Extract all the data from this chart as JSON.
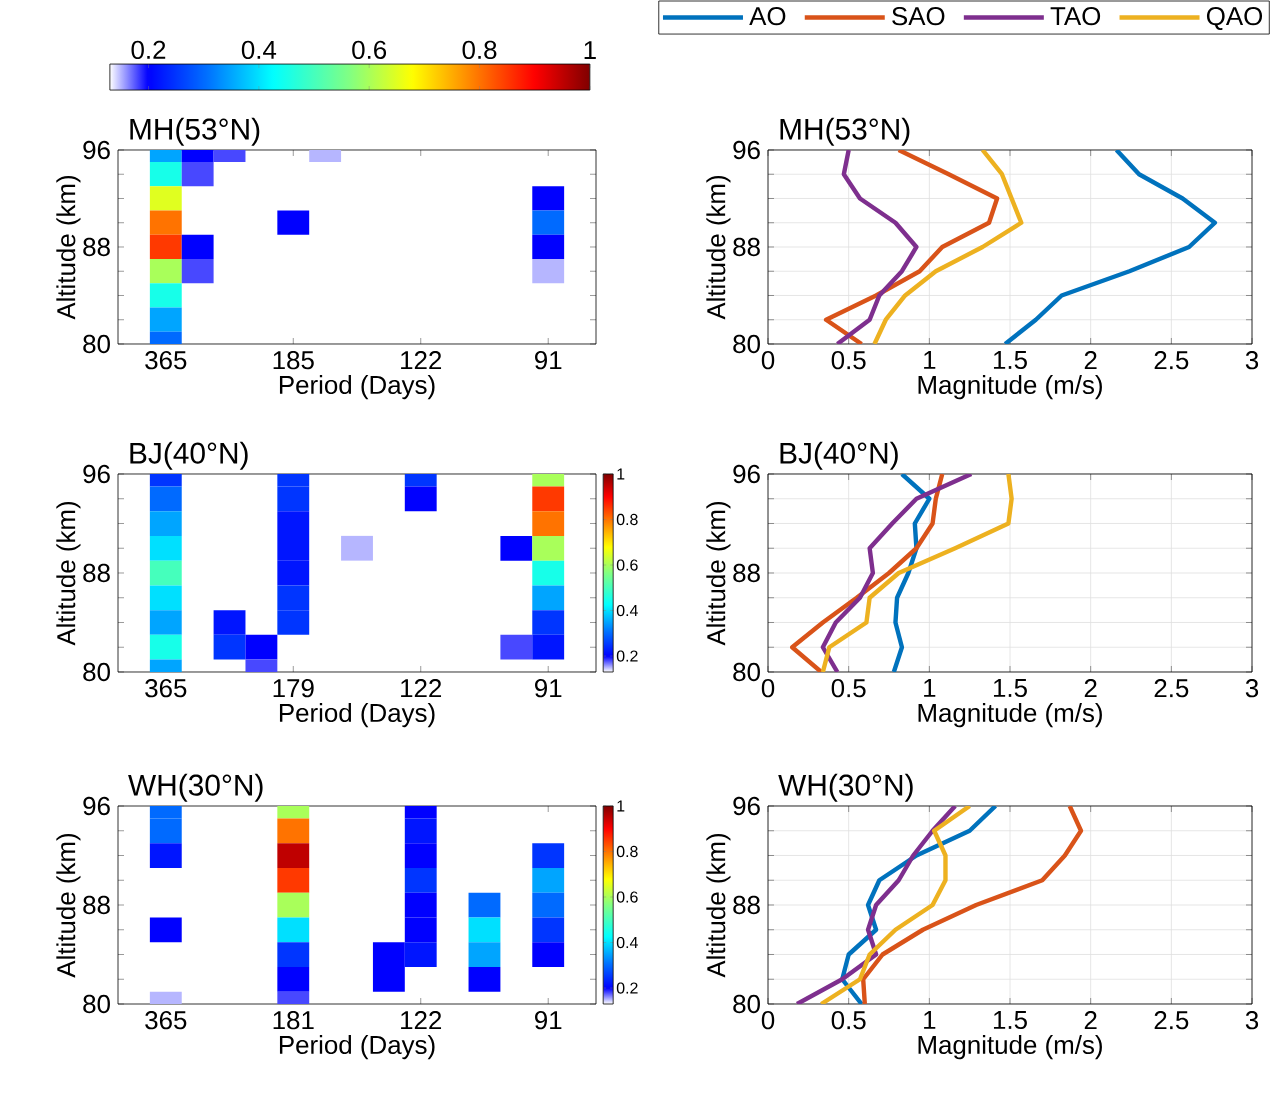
{
  "chart_data": [
    {
      "type": "heatmap",
      "title": "MH(53°N)",
      "xlabel": "Period (Days)",
      "ylabel": "Altitude (km)",
      "categories": [
        null,
        "365",
        null,
        null,
        null,
        "185",
        null,
        null,
        null,
        "122",
        null,
        null,
        null,
        "91",
        null
      ],
      "y_categories": [
        "96",
        null,
        null,
        null,
        "88",
        null,
        null,
        null,
        "80"
      ],
      "cells": [
        [
          null,
          0.35,
          0.2,
          0.18,
          null,
          null,
          0.15,
          null,
          null,
          null,
          null,
          null,
          null,
          null,
          null
        ],
        [
          null,
          0.45,
          0.18,
          null,
          null,
          null,
          null,
          null,
          null,
          null,
          null,
          null,
          null,
          null,
          null
        ],
        [
          null,
          0.65,
          null,
          null,
          null,
          null,
          null,
          null,
          null,
          null,
          null,
          null,
          null,
          0.2,
          null
        ],
        [
          null,
          0.8,
          null,
          null,
          null,
          0.2,
          null,
          null,
          null,
          null,
          null,
          null,
          null,
          0.3,
          null
        ],
        [
          null,
          0.85,
          0.2,
          null,
          null,
          null,
          null,
          null,
          null,
          null,
          null,
          null,
          null,
          0.2,
          null
        ],
        [
          null,
          0.6,
          0.18,
          null,
          null,
          null,
          null,
          null,
          null,
          null,
          null,
          null,
          null,
          0.15,
          null
        ],
        [
          null,
          0.45,
          null,
          null,
          null,
          null,
          null,
          null,
          null,
          null,
          null,
          null,
          null,
          null,
          null
        ],
        [
          null,
          0.35,
          null,
          null,
          null,
          null,
          null,
          null,
          null,
          null,
          null,
          null,
          null,
          null,
          null
        ],
        [
          null,
          0.3,
          null,
          null,
          null,
          null,
          null,
          null,
          null,
          null,
          null,
          null,
          null,
          null,
          null
        ]
      ],
      "clim": [
        0.13,
        1
      ],
      "cticks": [
        0.2,
        0.4,
        0.6,
        0.8,
        1
      ]
    },
    {
      "type": "line",
      "title": "MH(53°N)",
      "xlabel": "Magnitude (m/s)",
      "ylabel": "Altitude (km)",
      "orientation": "horizontal",
      "x": [
        80,
        82,
        84,
        86,
        88,
        90,
        92,
        94,
        96
      ],
      "series": [
        {
          "name": "AO",
          "color": "#0072bd",
          "values": [
            1.47,
            1.66,
            1.82,
            2.24,
            2.61,
            2.77,
            2.57,
            2.3,
            2.16
          ]
        },
        {
          "name": "SAO",
          "color": "#d95319",
          "values": [
            0.58,
            0.36,
            0.67,
            0.94,
            1.08,
            1.37,
            1.42,
            1.12,
            0.81
          ]
        },
        {
          "name": "TAO",
          "color": "#7e2f8e",
          "values": [
            0.43,
            0.63,
            0.69,
            0.83,
            0.92,
            0.79,
            0.57,
            0.47,
            0.5
          ]
        },
        {
          "name": "QAO",
          "color": "#edb120",
          "values": [
            0.66,
            0.73,
            0.85,
            1.04,
            1.33,
            1.57,
            1.51,
            1.45,
            1.33
          ]
        }
      ],
      "xlim": [
        0,
        3
      ],
      "xticks": [
        0,
        0.5,
        1,
        1.5,
        2,
        2.5,
        3
      ],
      "ylim": [
        80,
        96
      ],
      "yticks": [
        80,
        {
          "value": 82,
          "label": null
        },
        {
          "value": 84,
          "label": null
        },
        {
          "value": 86,
          "label": null
        },
        88,
        {
          "value": 90,
          "label": null
        },
        {
          "value": 92,
          "label": null
        },
        {
          "value": 94,
          "label": null
        },
        96
      ],
      "grid": true,
      "legend": "top"
    },
    {
      "type": "heatmap",
      "title": "BJ(40°N)",
      "xlabel": "Period (Days)",
      "ylabel": "Altitude (km)",
      "categories": [
        null,
        "365",
        null,
        null,
        null,
        "179",
        null,
        null,
        null,
        "122",
        null,
        null,
        null,
        "91",
        null
      ],
      "y_categories": [
        "96",
        null,
        null,
        null,
        "88",
        null,
        null,
        null,
        "80"
      ],
      "cells": [
        [
          null,
          0.25,
          null,
          null,
          null,
          0.25,
          null,
          null,
          null,
          0.25,
          null,
          null,
          null,
          0.6,
          null
        ],
        [
          null,
          0.3,
          null,
          null,
          null,
          0.25,
          null,
          null,
          null,
          0.2,
          null,
          null,
          null,
          0.85,
          null
        ],
        [
          null,
          0.35,
          null,
          null,
          null,
          0.22,
          null,
          null,
          null,
          null,
          null,
          null,
          null,
          0.8,
          null
        ],
        [
          null,
          0.4,
          null,
          null,
          null,
          0.22,
          null,
          0.15,
          null,
          null,
          null,
          null,
          0.2,
          0.6,
          null
        ],
        [
          null,
          0.5,
          null,
          null,
          null,
          0.22,
          null,
          null,
          null,
          null,
          null,
          null,
          null,
          0.45,
          null
        ],
        [
          null,
          0.4,
          null,
          null,
          null,
          0.25,
          null,
          null,
          null,
          null,
          null,
          null,
          null,
          0.35,
          null
        ],
        [
          null,
          0.35,
          null,
          0.22,
          null,
          0.25,
          null,
          null,
          null,
          null,
          null,
          null,
          null,
          0.25,
          null
        ],
        [
          null,
          0.45,
          null,
          0.25,
          0.2,
          null,
          null,
          null,
          null,
          null,
          null,
          null,
          0.18,
          0.22,
          null
        ],
        [
          null,
          0.35,
          null,
          null,
          0.18,
          null,
          null,
          null,
          null,
          null,
          null,
          null,
          null,
          null,
          null
        ]
      ],
      "clim": [
        0.13,
        1
      ],
      "cticks": [
        0.2,
        0.4,
        0.6,
        0.8,
        1
      ]
    },
    {
      "type": "line",
      "title": "BJ(40°N)",
      "xlabel": "Magnitude (m/s)",
      "ylabel": "Altitude (km)",
      "orientation": "horizontal",
      "x": [
        80,
        82,
        84,
        86,
        88,
        90,
        92,
        94,
        96
      ],
      "series": [
        {
          "color": "#0072bd",
          "values": [
            0.78,
            0.83,
            0.79,
            0.8,
            0.87,
            0.92,
            0.91,
            1.0,
            0.83
          ]
        },
        {
          "color": "#d95319",
          "values": [
            0.33,
            0.15,
            0.34,
            0.55,
            0.75,
            0.92,
            1.02,
            1.04,
            1.08
          ]
        },
        {
          "color": "#7e2f8e",
          "values": [
            0.43,
            0.34,
            0.42,
            0.57,
            0.65,
            0.63,
            0.77,
            0.92,
            1.26
          ]
        },
        {
          "color": "#edb120",
          "values": [
            0.34,
            0.38,
            0.61,
            0.63,
            0.81,
            1.16,
            1.49,
            1.51,
            1.49
          ]
        }
      ],
      "xlim": [
        0,
        3
      ],
      "xticks": [
        0,
        0.5,
        1,
        1.5,
        2,
        2.5,
        3
      ],
      "ylim": [
        80,
        96
      ],
      "yticks": [
        80,
        {
          "value": 82,
          "label": null
        },
        {
          "value": 84,
          "label": null
        },
        {
          "value": 86,
          "label": null
        },
        88,
        {
          "value": 90,
          "label": null
        },
        {
          "value": 92,
          "label": null
        },
        {
          "value": 94,
          "label": null
        },
        96
      ],
      "grid": true
    },
    {
      "type": "heatmap",
      "title": "WH(30°N)",
      "xlabel": "Period (Days)",
      "ylabel": "Altitude (km)",
      "categories": [
        null,
        "365",
        null,
        null,
        null,
        "181",
        null,
        null,
        null,
        "122",
        null,
        null,
        null,
        "91",
        null
      ],
      "y_categories": [
        "96",
        null,
        null,
        null,
        "88",
        null,
        null,
        null,
        "80"
      ],
      "cells": [
        [
          null,
          0.3,
          null,
          null,
          null,
          0.6,
          null,
          null,
          null,
          0.2,
          null,
          null,
          null,
          null,
          null
        ],
        [
          null,
          0.3,
          null,
          null,
          null,
          0.8,
          null,
          null,
          null,
          0.22,
          null,
          null,
          null,
          null,
          null
        ],
        [
          null,
          0.22,
          null,
          null,
          null,
          0.95,
          null,
          null,
          null,
          0.2,
          null,
          null,
          null,
          0.25,
          null
        ],
        [
          null,
          null,
          null,
          null,
          null,
          0.85,
          null,
          null,
          null,
          0.25,
          null,
          null,
          null,
          0.35,
          null
        ],
        [
          null,
          null,
          null,
          null,
          null,
          0.6,
          null,
          null,
          null,
          0.2,
          null,
          0.3,
          null,
          0.3,
          null
        ],
        [
          null,
          0.2,
          null,
          null,
          null,
          0.4,
          null,
          null,
          null,
          0.2,
          null,
          0.4,
          null,
          0.25,
          null
        ],
        [
          null,
          null,
          null,
          null,
          null,
          0.25,
          null,
          null,
          0.2,
          0.22,
          null,
          0.35,
          null,
          0.2,
          null
        ],
        [
          null,
          null,
          null,
          null,
          null,
          0.2,
          null,
          null,
          0.2,
          null,
          null,
          0.2,
          null,
          null,
          null
        ],
        [
          null,
          0.15,
          null,
          null,
          null,
          0.18,
          null,
          null,
          null,
          null,
          null,
          null,
          null,
          null,
          null
        ]
      ],
      "clim": [
        0.13,
        1
      ],
      "cticks": [
        0.2,
        0.4,
        0.6,
        0.8,
        1
      ]
    },
    {
      "type": "line",
      "title": "WH(30°N)",
      "xlabel": "Magnitude (m/s)",
      "ylabel": "Altitude (km)",
      "orientation": "horizontal",
      "x": [
        80,
        82,
        84,
        86,
        88,
        90,
        92,
        94,
        96
      ],
      "series": [
        {
          "color": "#0072bd",
          "values": [
            0.58,
            0.46,
            0.5,
            0.67,
            0.62,
            0.69,
            0.92,
            1.25,
            1.41
          ]
        },
        {
          "color": "#d95319",
          "values": [
            0.6,
            0.59,
            0.71,
            0.96,
            1.29,
            1.7,
            1.84,
            1.94,
            1.87
          ]
        },
        {
          "color": "#7e2f8e",
          "values": [
            0.18,
            0.46,
            0.67,
            0.62,
            0.67,
            0.81,
            0.9,
            1.02,
            1.16
          ]
        },
        {
          "color": "#edb120",
          "values": [
            0.33,
            0.57,
            0.63,
            0.79,
            1.02,
            1.1,
            1.1,
            1.03,
            1.25
          ]
        }
      ],
      "xlim": [
        0,
        3
      ],
      "xticks": [
        0,
        0.5,
        1,
        1.5,
        2,
        2.5,
        3
      ],
      "ylim": [
        80,
        96
      ],
      "yticks": [
        80,
        {
          "value": 82,
          "label": null
        },
        {
          "value": 84,
          "label": null
        },
        {
          "value": 86,
          "label": null
        },
        88,
        {
          "value": 90,
          "label": null
        },
        {
          "value": 92,
          "label": null
        },
        {
          "value": 94,
          "label": null
        },
        96
      ],
      "grid": true
    }
  ]
}
